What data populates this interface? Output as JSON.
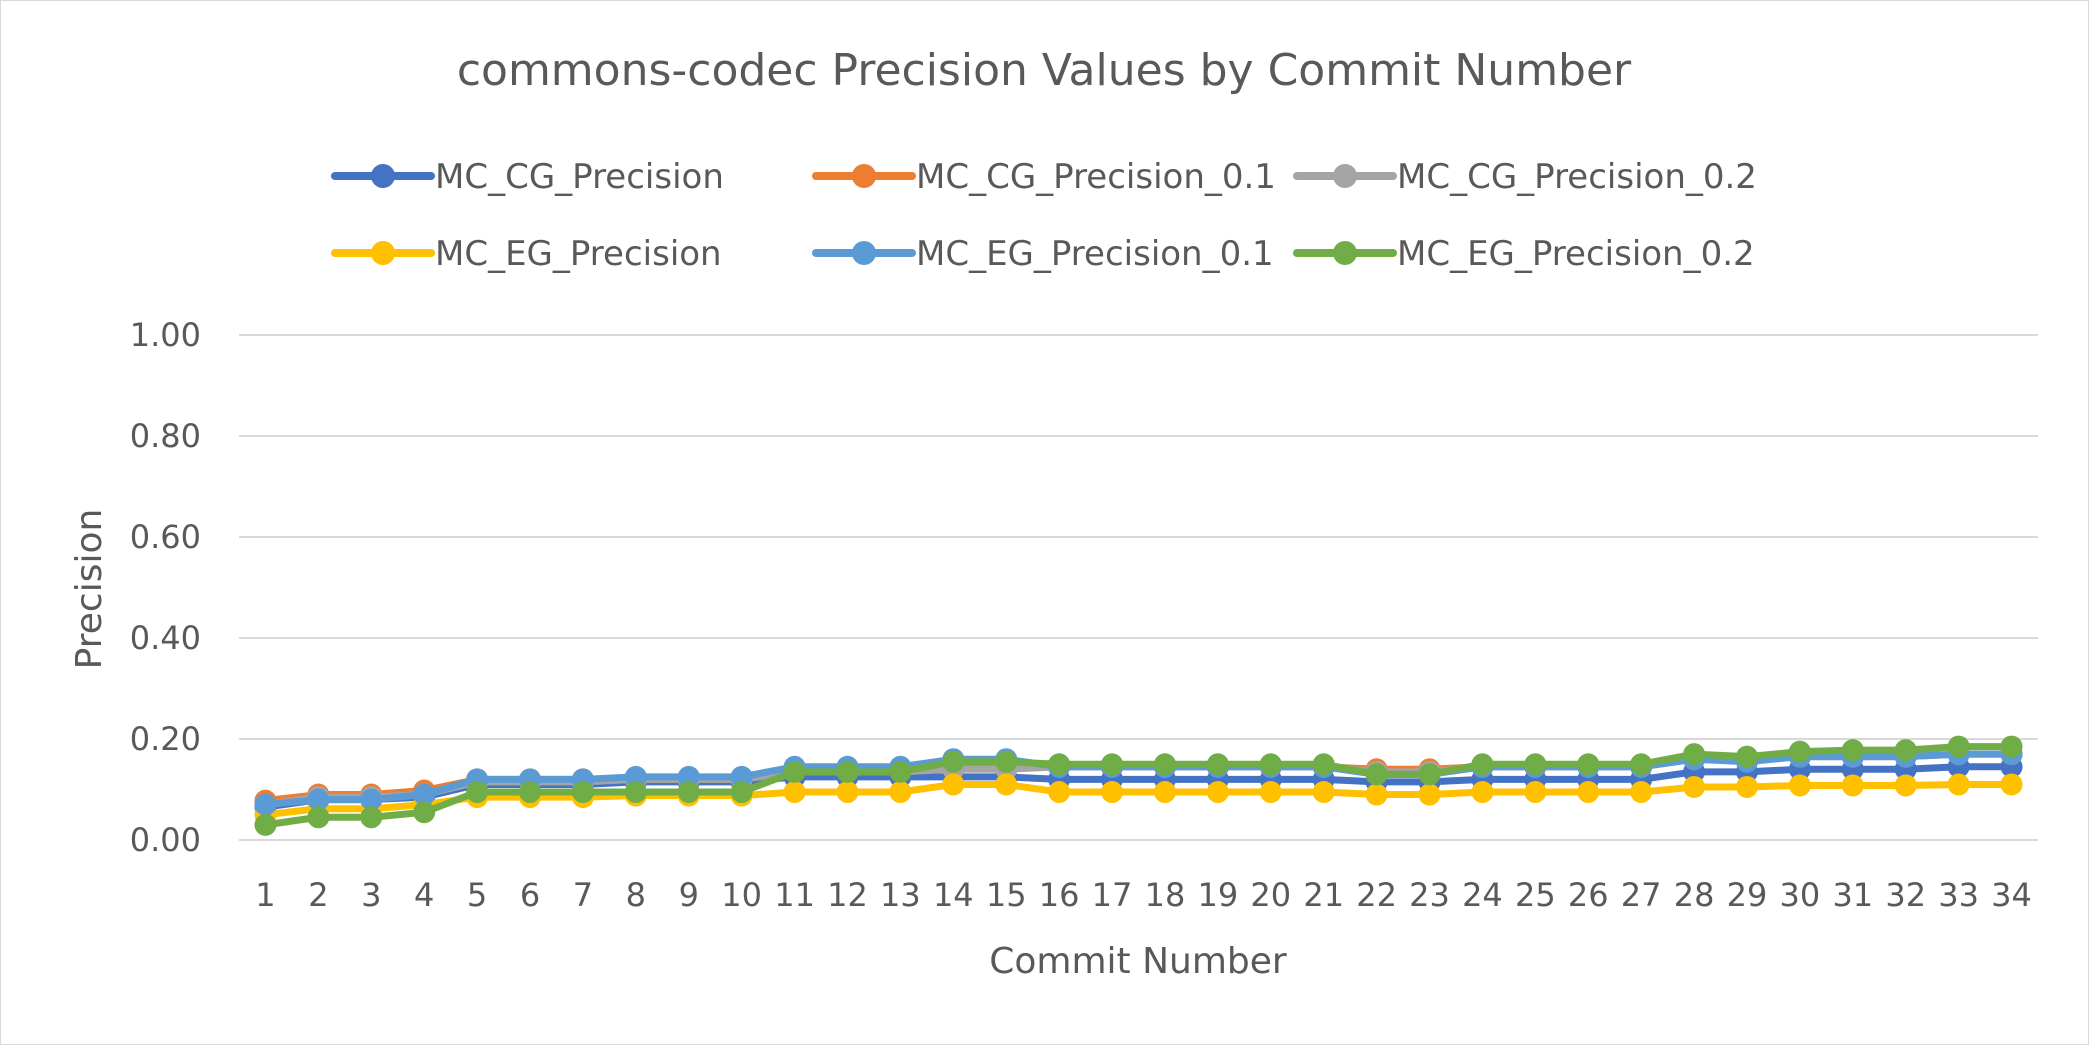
{
  "chart_data": {
    "type": "line",
    "title": "commons-codec Precision Values by Commit Number",
    "xlabel": "Commit Number",
    "ylabel": "Precision",
    "ylim": [
      0,
      1
    ],
    "yticks": [
      "0.00",
      "0.20",
      "0.40",
      "0.60",
      "0.80",
      "1.00"
    ],
    "grid": true,
    "legend_position": "top",
    "categories": [
      "1",
      "2",
      "3",
      "4",
      "5",
      "6",
      "7",
      "8",
      "9",
      "10",
      "11",
      "12",
      "13",
      "14",
      "15",
      "16",
      "17",
      "18",
      "19",
      "20",
      "21",
      "22",
      "23",
      "24",
      "25",
      "26",
      "27",
      "28",
      "29",
      "30",
      "31",
      "32",
      "33",
      "34"
    ],
    "series": [
      {
        "name": "MC_CG_Precision",
        "color": "#4472C4",
        "values": [
          0.065,
          0.08,
          0.08,
          0.085,
          0.11,
          0.11,
          0.11,
          0.115,
          0.115,
          0.115,
          0.125,
          0.125,
          0.125,
          0.125,
          0.125,
          0.12,
          0.12,
          0.12,
          0.12,
          0.12,
          0.12,
          0.115,
          0.115,
          0.12,
          0.12,
          0.12,
          0.12,
          0.135,
          0.135,
          0.14,
          0.14,
          0.14,
          0.145,
          0.145
        ]
      },
      {
        "name": "MC_CG_Precision_0.1",
        "color": "#ED7D31",
        "values": [
          0.078,
          0.09,
          0.09,
          0.098,
          0.12,
          0.12,
          0.12,
          0.12,
          0.12,
          0.12,
          0.135,
          0.135,
          0.14,
          0.145,
          0.145,
          0.145,
          0.145,
          0.145,
          0.145,
          0.145,
          0.145,
          0.14,
          0.14,
          0.145,
          0.145,
          0.145,
          0.145,
          0.16,
          0.16,
          0.165,
          0.165,
          0.165,
          0.17,
          0.17
        ]
      },
      {
        "name": "MC_CG_Precision_0.2",
        "color": "#A5A5A5",
        "values": [
          0.07,
          0.085,
          0.085,
          0.09,
          0.115,
          0.115,
          0.115,
          0.12,
          0.12,
          0.12,
          0.135,
          0.135,
          0.135,
          0.14,
          0.14,
          0.145,
          0.145,
          0.145,
          0.145,
          0.145,
          0.145,
          0.135,
          0.135,
          0.145,
          0.145,
          0.145,
          0.145,
          0.16,
          0.16,
          0.165,
          0.165,
          0.165,
          0.17,
          0.17
        ]
      },
      {
        "name": "MC_EG_Precision",
        "color": "#FFC000",
        "values": [
          0.05,
          0.062,
          0.062,
          0.07,
          0.085,
          0.085,
          0.085,
          0.088,
          0.088,
          0.088,
          0.095,
          0.095,
          0.095,
          0.11,
          0.11,
          0.095,
          0.095,
          0.095,
          0.095,
          0.095,
          0.095,
          0.09,
          0.09,
          0.095,
          0.095,
          0.095,
          0.095,
          0.105,
          0.105,
          0.108,
          0.108,
          0.108,
          0.11,
          0.11
        ]
      },
      {
        "name": "MC_EG_Precision_0.1",
        "color": "#5B9BD5",
        "values": [
          0.07,
          0.08,
          0.08,
          0.09,
          0.12,
          0.12,
          0.12,
          0.125,
          0.125,
          0.125,
          0.145,
          0.145,
          0.145,
          0.16,
          0.16,
          0.145,
          0.145,
          0.145,
          0.145,
          0.145,
          0.145,
          0.13,
          0.13,
          0.145,
          0.145,
          0.145,
          0.145,
          0.16,
          0.155,
          0.165,
          0.165,
          0.165,
          0.17,
          0.17
        ]
      },
      {
        "name": "MC_EG_Precision_0.2",
        "color": "#70AD47",
        "values": [
          0.03,
          0.045,
          0.045,
          0.055,
          0.095,
          0.095,
          0.095,
          0.095,
          0.095,
          0.095,
          0.135,
          0.135,
          0.135,
          0.155,
          0.155,
          0.15,
          0.15,
          0.15,
          0.15,
          0.15,
          0.15,
          0.13,
          0.13,
          0.15,
          0.15,
          0.15,
          0.15,
          0.17,
          0.165,
          0.175,
          0.178,
          0.178,
          0.185,
          0.185
        ]
      }
    ]
  }
}
